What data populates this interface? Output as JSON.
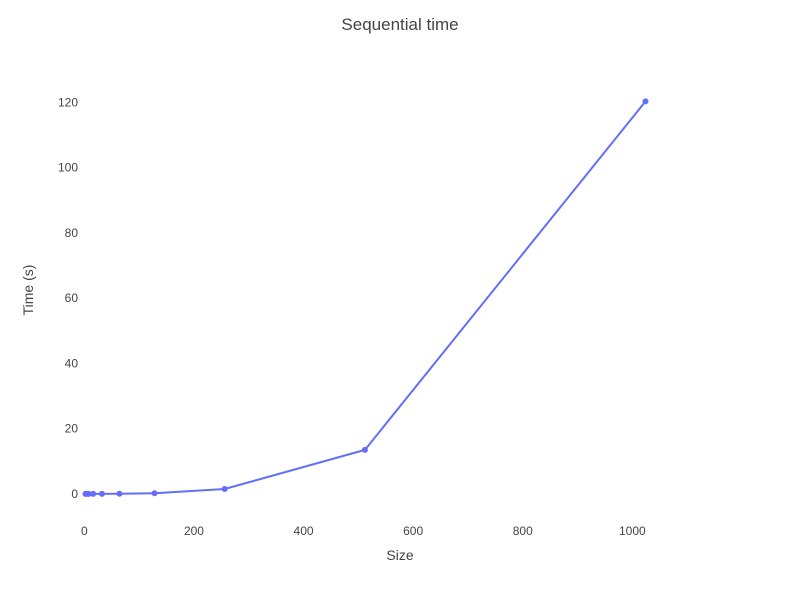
{
  "chart_data": {
    "type": "line",
    "title": "Sequential time",
    "xlabel": "Size",
    "ylabel": "Time (s)",
    "xlim": [
      -8,
      1160
    ],
    "ylim": [
      -8,
      133
    ],
    "xticks": [
      0,
      200,
      400,
      600,
      800,
      1000
    ],
    "yticks": [
      0,
      20,
      40,
      60,
      80,
      100,
      120
    ],
    "grid": false,
    "legend": "none",
    "series": [
      {
        "color": "#636efa",
        "mode": "lines+markers",
        "x": [
          2,
          4,
          8,
          16,
          32,
          64,
          128,
          256,
          512,
          1024
        ],
        "y": [
          0.0,
          0.0,
          0.0,
          0.0,
          0.01,
          0.03,
          0.2,
          1.5,
          13.5,
          120.3
        ]
      }
    ]
  }
}
